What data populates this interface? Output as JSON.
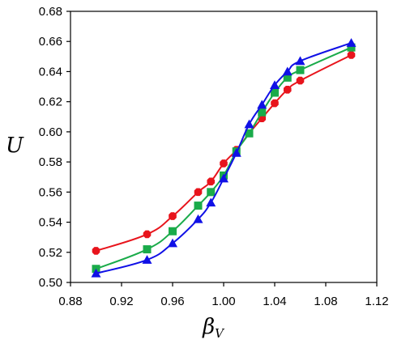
{
  "chart_data": {
    "type": "line",
    "xlabel": "β",
    "xlabel_sub": "V",
    "ylabel": "U",
    "xlim": [
      0.88,
      1.12
    ],
    "ylim": [
      0.5,
      0.68
    ],
    "x_ticks": [
      "0.88",
      "0.92",
      "0.96",
      "1.00",
      "1.04",
      "1.08",
      "1.12"
    ],
    "y_ticks": [
      "0.50",
      "0.52",
      "0.54",
      "0.56",
      "0.58",
      "0.60",
      "0.62",
      "0.64",
      "0.66",
      "0.68"
    ],
    "grid": false,
    "series": [
      {
        "marker": "diamond",
        "color": "#e8141c",
        "points": [
          [
            0.9,
            0.521
          ],
          [
            0.94,
            0.532
          ],
          [
            0.96,
            0.544
          ],
          [
            0.98,
            0.56
          ],
          [
            0.99,
            0.567
          ],
          [
            1.0,
            0.579
          ],
          [
            1.01,
            0.588
          ],
          [
            1.02,
            0.599
          ],
          [
            1.03,
            0.609
          ],
          [
            1.04,
            0.619
          ],
          [
            1.05,
            0.628
          ],
          [
            1.06,
            0.634
          ],
          [
            1.1,
            0.651
          ]
        ]
      },
      {
        "marker": "square",
        "color": "#1aab4a",
        "points": [
          [
            0.9,
            0.509
          ],
          [
            0.94,
            0.522
          ],
          [
            0.96,
            0.534
          ],
          [
            0.98,
            0.551
          ],
          [
            0.99,
            0.56
          ],
          [
            1.0,
            0.571
          ],
          [
            1.01,
            0.587
          ],
          [
            1.02,
            0.599
          ],
          [
            1.03,
            0.613
          ],
          [
            1.04,
            0.626
          ],
          [
            1.05,
            0.636
          ],
          [
            1.06,
            0.641
          ],
          [
            1.1,
            0.656
          ]
        ]
      },
      {
        "marker": "triangle",
        "color": "#1010e6",
        "points": [
          [
            0.9,
            0.506
          ],
          [
            0.94,
            0.515
          ],
          [
            0.96,
            0.526
          ],
          [
            0.98,
            0.542
          ],
          [
            0.99,
            0.553
          ],
          [
            1.0,
            0.569
          ],
          [
            1.01,
            0.586
          ],
          [
            1.02,
            0.605
          ],
          [
            1.03,
            0.618
          ],
          [
            1.04,
            0.631
          ],
          [
            1.05,
            0.64
          ],
          [
            1.06,
            0.647
          ],
          [
            1.1,
            0.659
          ]
        ]
      }
    ]
  }
}
